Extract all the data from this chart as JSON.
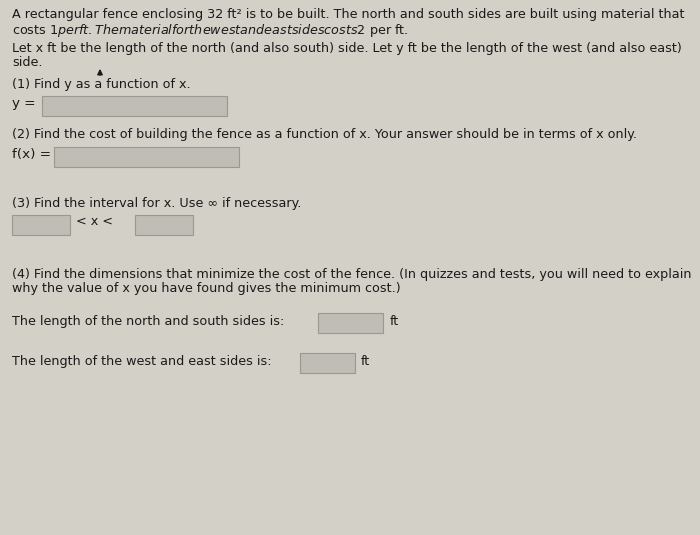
{
  "background_color": "#d3d0c8",
  "text_color": "#1a1a1a",
  "title_line1": "A rectangular fence enclosing 32 ft² is to be built. The north and south sides are built using material that",
  "title_line2": "costs $1 per ft. The material for the west and east sides costs $2 per ft.",
  "para2_line1": "Let x ft be the length of the north (and also south) side. Let y ft be the length of the west (and also east)",
  "para2_line2": "side.",
  "q1_label": "(1) Find y as a function of x.",
  "y_label": "y =",
  "q2_label": "(2) Find the cost of building the fence as a function of x. Your answer should be in terms of x only.",
  "fx_label": "f(x) =",
  "q3_label": "(3) Find the interval for x. Use ∞ if necessary.",
  "less_than": "< x <",
  "q4_line1": "(4) Find the dimensions that minimize the cost of the fence. (In quizzes and tests, you will need to explain",
  "q4_line2": "why the value of x you have found gives the minimum cost.)",
  "north_south_label": "The length of the north and south sides is:",
  "west_east_label": "The length of the west and east sides is:",
  "ft": "ft",
  "input_box_color": "#bfbdb5",
  "input_box_edge_color": "#999990",
  "font_size": 9.2
}
